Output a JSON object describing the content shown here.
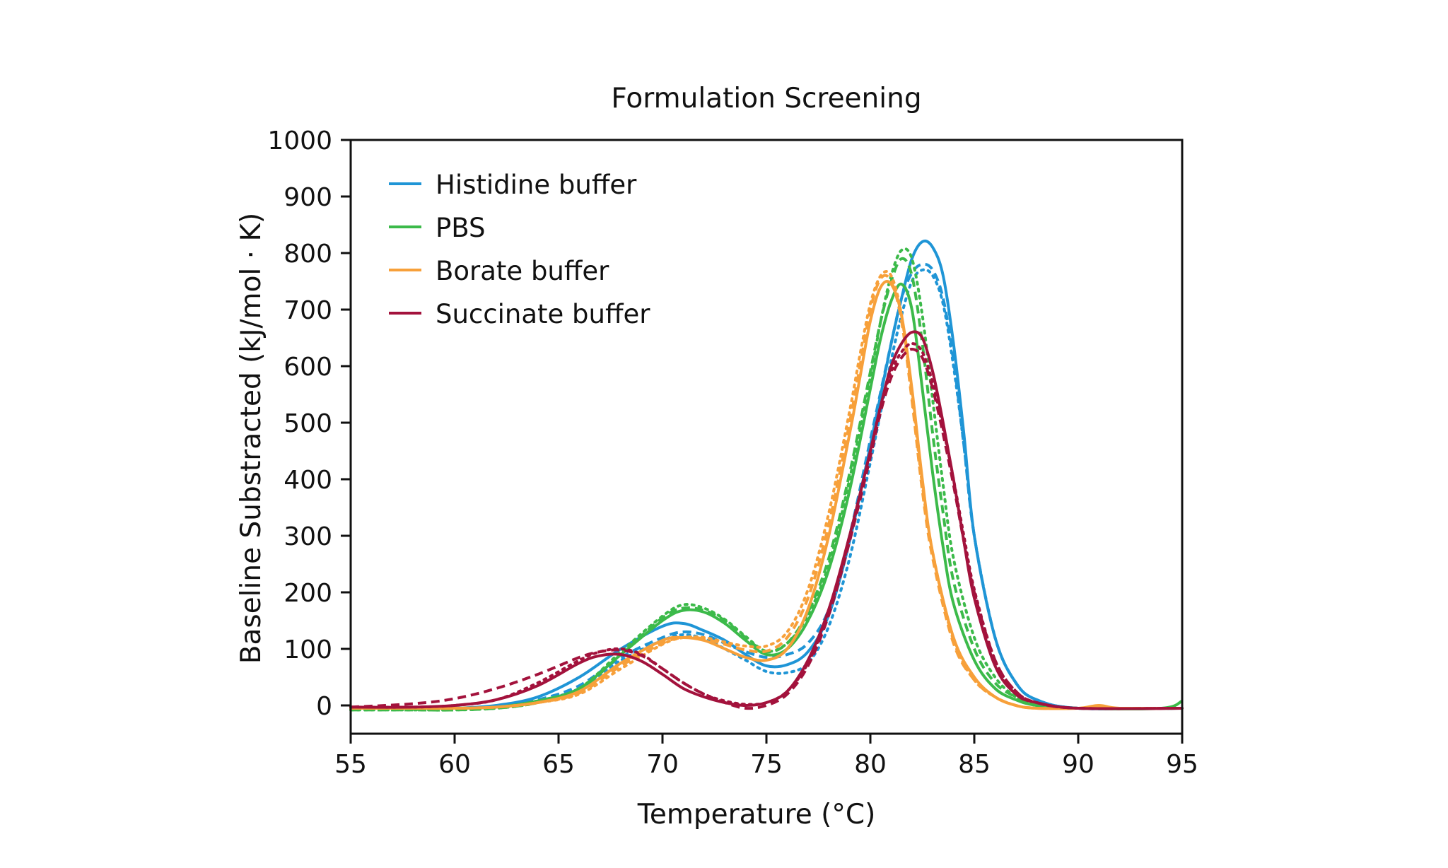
{
  "chart_data": {
    "type": "line",
    "title": "Formulation Screening",
    "xlabel": "Temperature (°C)",
    "ylabel": "Baseline Substracted (kJ/mol · K)",
    "xlim": [
      55,
      95
    ],
    "ylim": [
      -50,
      1000
    ],
    "xticks": [
      55,
      60,
      65,
      70,
      75,
      80,
      85,
      90,
      95
    ],
    "yticks": [
      0,
      100,
      200,
      300,
      400,
      500,
      600,
      700,
      800,
      900,
      1000
    ],
    "grid": false,
    "legend_position": "top-left",
    "line_styles_note_colors": "Each buffer is shown as solid, dashed and dotted replicates in the same color.",
    "series": [
      {
        "name": "Histidine buffer",
        "color": "#1f95d6",
        "style": "solid",
        "x": [
          55,
          58,
          60,
          62,
          64,
          66,
          68,
          70,
          71,
          72,
          73,
          74,
          75,
          76,
          77,
          78,
          79,
          80,
          81,
          81.5,
          82,
          82.5,
          83,
          83.5,
          84,
          84.5,
          85,
          86,
          87,
          88,
          90,
          95
        ],
        "y": [
          -5,
          -5,
          -5,
          0,
          15,
          50,
          100,
          140,
          145,
          132,
          115,
          90,
          70,
          72,
          95,
          160,
          290,
          460,
          640,
          720,
          790,
          820,
          810,
          760,
          640,
          480,
          300,
          120,
          40,
          10,
          -5,
          -5
        ]
      },
      {
        "name": "Histidine buffer",
        "color": "#1f95d6",
        "style": "dashed",
        "x": [
          55,
          58,
          60,
          62,
          64,
          66,
          68,
          70,
          71,
          72,
          73,
          74,
          75,
          76,
          77,
          78,
          79,
          80,
          81,
          81.5,
          82,
          82.5,
          83,
          83.5,
          84,
          84.5,
          85,
          86,
          87,
          88,
          90,
          95
        ],
        "y": [
          -5,
          -5,
          -5,
          -2,
          10,
          35,
          85,
          120,
          130,
          125,
          110,
          95,
          85,
          90,
          110,
          170,
          300,
          470,
          640,
          720,
          765,
          780,
          770,
          720,
          610,
          460,
          300,
          120,
          40,
          10,
          -5,
          -5
        ]
      },
      {
        "name": "Histidine buffer",
        "color": "#1f95d6",
        "style": "dotted",
        "x": [
          55,
          58,
          60,
          62,
          64,
          66,
          68,
          70,
          71,
          72,
          73,
          74,
          75,
          76,
          77,
          78,
          79,
          80,
          81,
          81.5,
          82,
          82.5,
          83,
          83.5,
          84,
          84.5,
          85,
          86,
          87,
          88,
          90,
          95
        ],
        "y": [
          -5,
          -5,
          -5,
          -2,
          8,
          30,
          80,
          115,
          125,
          118,
          100,
          80,
          60,
          58,
          75,
          140,
          260,
          430,
          610,
          690,
          750,
          770,
          760,
          710,
          600,
          460,
          300,
          120,
          40,
          10,
          -5,
          -5
        ]
      },
      {
        "name": "PBS",
        "color": "#3cba4a",
        "style": "solid",
        "x": [
          55,
          58,
          60,
          62,
          64,
          66,
          68,
          70,
          71,
          72,
          73,
          74,
          75,
          76,
          77,
          78,
          79,
          80,
          80.5,
          81,
          81.5,
          82,
          82.5,
          83,
          83.5,
          84,
          85,
          86,
          87,
          88,
          90,
          94,
          95
        ],
        "y": [
          -5,
          -5,
          -5,
          -3,
          8,
          30,
          90,
          150,
          168,
          165,
          145,
          115,
          90,
          100,
          150,
          240,
          380,
          560,
          650,
          715,
          745,
          700,
          560,
          410,
          280,
          180,
          80,
          30,
          10,
          0,
          -5,
          -5,
          8
        ]
      },
      {
        "name": "PBS",
        "color": "#3cba4a",
        "style": "dashed",
        "x": [
          55,
          58,
          60,
          62,
          64,
          66,
          68,
          70,
          71,
          72,
          73,
          74,
          75,
          76,
          77,
          78,
          79,
          80,
          80.5,
          81,
          81.5,
          82,
          82.5,
          83,
          83.5,
          84,
          85,
          86,
          87,
          88,
          90,
          95
        ],
        "y": [
          -8,
          -8,
          -8,
          -5,
          5,
          28,
          90,
          155,
          172,
          168,
          150,
          120,
          95,
          110,
          165,
          260,
          410,
          590,
          680,
          750,
          790,
          760,
          640,
          480,
          340,
          220,
          100,
          40,
          15,
          0,
          -5,
          -5
        ]
      },
      {
        "name": "PBS",
        "color": "#3cba4a",
        "style": "dotted",
        "x": [
          55,
          58,
          60,
          62,
          64,
          66,
          68,
          70,
          71,
          72,
          73,
          74,
          75,
          76,
          77,
          78,
          79,
          80,
          80.5,
          81,
          81.5,
          82,
          82.5,
          83,
          83.5,
          84,
          85,
          86,
          87,
          88,
          90,
          95
        ],
        "y": [
          -8,
          -8,
          -8,
          -5,
          5,
          30,
          95,
          158,
          178,
          172,
          152,
          122,
          96,
          110,
          160,
          250,
          400,
          580,
          680,
          760,
          805,
          790,
          690,
          540,
          390,
          260,
          120,
          50,
          15,
          0,
          -5,
          -5
        ]
      },
      {
        "name": "Borate buffer",
        "color": "#f7a03a",
        "style": "solid",
        "x": [
          55,
          58,
          60,
          62,
          64,
          66,
          68,
          70,
          71,
          72,
          73,
          74,
          75,
          76,
          77,
          78,
          79,
          79.5,
          80,
          80.5,
          81,
          81.5,
          82,
          82.5,
          83,
          84,
          85,
          86,
          87,
          88,
          90,
          91,
          92,
          95
        ],
        "y": [
          -5,
          -5,
          -5,
          -3,
          5,
          25,
          75,
          115,
          120,
          115,
          100,
          85,
          80,
          100,
          170,
          300,
          480,
          580,
          680,
          740,
          745,
          690,
          560,
          400,
          270,
          120,
          50,
          15,
          0,
          -5,
          -5,
          0,
          -5,
          -5
        ]
      },
      {
        "name": "Borate buffer",
        "color": "#f7a03a",
        "style": "dashed",
        "x": [
          55,
          58,
          60,
          62,
          64,
          66,
          68,
          70,
          71,
          72,
          73,
          74,
          75,
          76,
          77,
          78,
          79,
          79.5,
          80,
          80.5,
          81,
          81.5,
          82,
          82.5,
          83,
          84,
          85,
          86,
          87,
          88,
          90,
          95
        ],
        "y": [
          -5,
          -5,
          -5,
          -3,
          5,
          22,
          70,
          110,
          120,
          118,
          108,
          98,
          96,
          120,
          190,
          320,
          500,
          600,
          700,
          755,
          750,
          680,
          540,
          380,
          260,
          110,
          45,
          15,
          0,
          -5,
          -5,
          -5
        ]
      },
      {
        "name": "Borate buffer",
        "color": "#f7a03a",
        "style": "dotted",
        "x": [
          55,
          58,
          60,
          62,
          64,
          66,
          68,
          70,
          71,
          72,
          73,
          74,
          75,
          76,
          77,
          78,
          79,
          79.5,
          80,
          80.5,
          81,
          81.5,
          82,
          82.5,
          83,
          84,
          85,
          86,
          87,
          88,
          90,
          95
        ],
        "y": [
          -5,
          -5,
          -5,
          -3,
          5,
          20,
          65,
          108,
          120,
          120,
          112,
          105,
          105,
          130,
          205,
          340,
          520,
          620,
          710,
          760,
          760,
          690,
          550,
          390,
          270,
          115,
          45,
          15,
          0,
          -5,
          -5,
          -5
        ]
      },
      {
        "name": "Succinate buffer",
        "color": "#a3123c",
        "style": "solid",
        "x": [
          55,
          58,
          60,
          62,
          64,
          66,
          67,
          68,
          69,
          70,
          71,
          72,
          73,
          74,
          75,
          76,
          77,
          78,
          79,
          80,
          80.5,
          81,
          81.5,
          82,
          82.5,
          83,
          83.5,
          84,
          84.5,
          85,
          86,
          87,
          88,
          90,
          95
        ],
        "y": [
          -3,
          -3,
          0,
          10,
          35,
          75,
          88,
          90,
          78,
          55,
          30,
          15,
          5,
          0,
          5,
          25,
          80,
          170,
          300,
          450,
          530,
          600,
          640,
          660,
          650,
          590,
          500,
          400,
          290,
          190,
          70,
          20,
          5,
          -5,
          -5
        ]
      },
      {
        "name": "Succinate buffer",
        "color": "#a3123c",
        "style": "dashed",
        "x": [
          55,
          58,
          60,
          62,
          64,
          66,
          67,
          68,
          69,
          70,
          71,
          72,
          73,
          74,
          75,
          76,
          77,
          78,
          79,
          80,
          80.5,
          81,
          81.5,
          82,
          82.5,
          83,
          83.5,
          84,
          84.5,
          85,
          86,
          87,
          88,
          90,
          95
        ],
        "y": [
          -3,
          3,
          12,
          30,
          55,
          85,
          95,
          98,
          88,
          65,
          40,
          20,
          5,
          -5,
          0,
          20,
          70,
          160,
          290,
          440,
          520,
          580,
          615,
          630,
          615,
          560,
          480,
          390,
          290,
          200,
          80,
          25,
          5,
          -5,
          -5
        ]
      },
      {
        "name": "Succinate buffer",
        "color": "#a3123c",
        "style": "dotted",
        "x": [
          55,
          58,
          60,
          62,
          64,
          66,
          67,
          68,
          69,
          70,
          71,
          72,
          73,
          74,
          75,
          76,
          77,
          78,
          79,
          80,
          80.5,
          81,
          81.5,
          82,
          82.5,
          83,
          83.5,
          84,
          84.5,
          85,
          86,
          87,
          88,
          90,
          95
        ],
        "y": [
          -3,
          -3,
          0,
          10,
          40,
          80,
          95,
          100,
          90,
          65,
          40,
          20,
          8,
          2,
          5,
          25,
          75,
          165,
          295,
          450,
          530,
          590,
          625,
          640,
          625,
          570,
          490,
          400,
          300,
          205,
          80,
          25,
          5,
          -5,
          -5
        ]
      }
    ],
    "legend": [
      {
        "label": "Histidine buffer",
        "color": "#1f95d6"
      },
      {
        "label": "PBS",
        "color": "#3cba4a"
      },
      {
        "label": "Borate buffer",
        "color": "#f7a03a"
      },
      {
        "label": "Succinate buffer",
        "color": "#a3123c"
      }
    ]
  }
}
